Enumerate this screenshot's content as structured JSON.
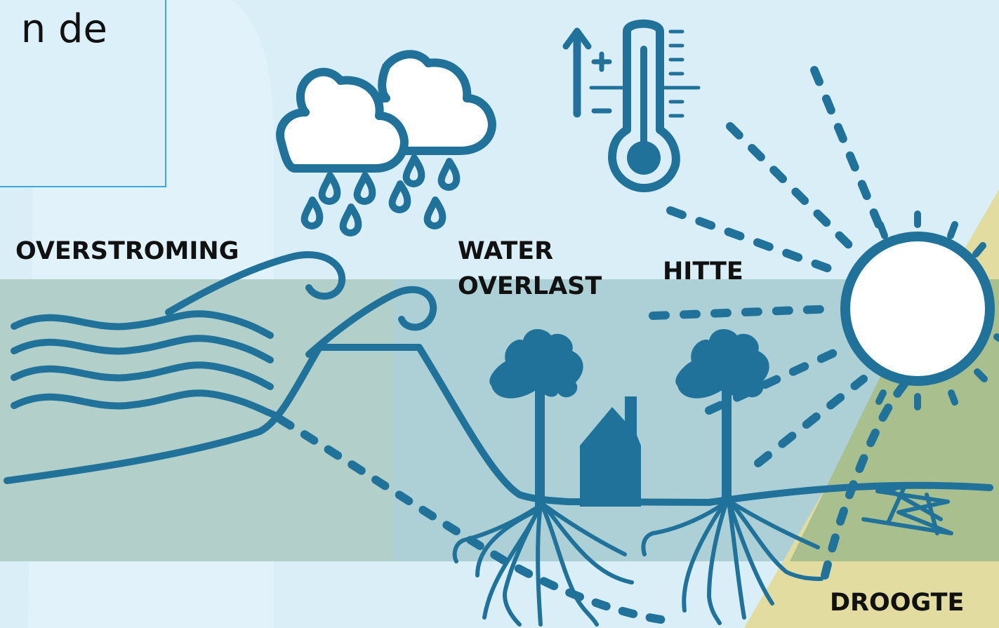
{
  "heading": {
    "visible_text": "n de"
  },
  "labels": {
    "flood": "OVERSTROMING",
    "water_line1": "WATER",
    "water_line2": "OVERLAST",
    "heat": "HITTE",
    "drought": "DROOGTE"
  },
  "colors": {
    "sky": "#daeef8",
    "ground_band": "#b2cfc9",
    "ground_band_right": "#a9d0dc",
    "drought_zone": "#e3dca0",
    "drought_overlap": "#a9bf8e",
    "line": "#21729a",
    "frame": "#3aa8d8",
    "text": "#111111"
  },
  "icons": [
    "cloud-rain-icon",
    "thermometer-icon",
    "sun-icon",
    "house-icon",
    "tree-icon",
    "wave-icon",
    "cracked-soil-icon"
  ]
}
